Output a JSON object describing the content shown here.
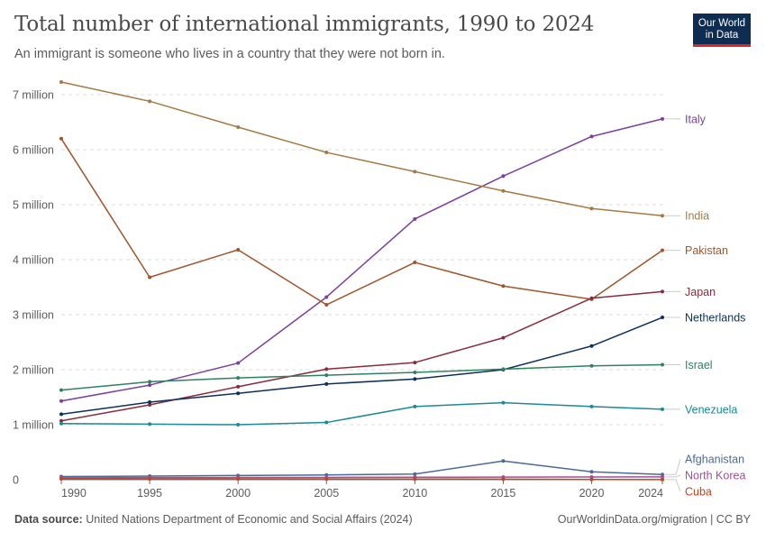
{
  "header": {
    "title": "Total number of international immigrants, 1990 to 2024",
    "subtitle": "An immigrant is someone who lives in a country that they were not born in."
  },
  "logo": {
    "line1": "Our World",
    "line2": "in Data"
  },
  "footer": {
    "source_label": "Data source:",
    "source_text": "United Nations Department of Economic and Social Affairs (2024)",
    "credit": "OurWorldinData.org/migration | CC BY"
  },
  "chart_data": {
    "type": "line",
    "title": "Total number of international immigrants, 1990 to 2024",
    "x": [
      1990,
      1995,
      2000,
      2005,
      2010,
      2015,
      2020,
      2024
    ],
    "x_tick_labels": [
      "1990",
      "1995",
      "2000",
      "2005",
      "2010",
      "2015",
      "2020",
      "2024"
    ],
    "ylim": [
      0,
      7000000
    ],
    "y_ticks": [
      0,
      1000000,
      2000000,
      3000000,
      4000000,
      5000000,
      6000000,
      7000000
    ],
    "y_tick_labels": [
      "0",
      "1 million",
      "2 million",
      "3 million",
      "4 million",
      "5 million",
      "6 million",
      "7 million"
    ],
    "grid": "horizontal dashed",
    "legend": "right, labels at line ends",
    "series": [
      {
        "name": "Italy",
        "color": "#7b3fa0",
        "values": [
          1430000,
          1720000,
          2120000,
          3320000,
          4740000,
          5520000,
          6240000,
          6560000
        ]
      },
      {
        "name": "India",
        "color": "#a57a42",
        "values": [
          7230000,
          6880000,
          6410000,
          5950000,
          5600000,
          5250000,
          4930000,
          4800000
        ]
      },
      {
        "name": "Pakistan",
        "color": "#a2542a",
        "values": [
          6200000,
          3680000,
          4180000,
          3180000,
          3950000,
          3520000,
          3280000,
          4170000
        ]
      },
      {
        "name": "Japan",
        "color": "#8c2a3c",
        "values": [
          1070000,
          1360000,
          1690000,
          2010000,
          2130000,
          2580000,
          3300000,
          3420000
        ]
      },
      {
        "name": "Netherlands",
        "color": "#0c2f5c",
        "values": [
          1190000,
          1410000,
          1570000,
          1740000,
          1830000,
          2000000,
          2430000,
          2950000
        ]
      },
      {
        "name": "Israel",
        "color": "#2e8260",
        "values": [
          1630000,
          1780000,
          1850000,
          1900000,
          1950000,
          2010000,
          2070000,
          2090000
        ]
      },
      {
        "name": "Venezuela",
        "color": "#1a8a94",
        "values": [
          1020000,
          1010000,
          1000000,
          1040000,
          1330000,
          1400000,
          1330000,
          1280000
        ]
      },
      {
        "name": "Afghanistan",
        "color": "#4a6a9a",
        "values": [
          57000,
          65000,
          76000,
          87000,
          102000,
          340000,
          144000,
          95000
        ]
      },
      {
        "name": "North Korea",
        "color": "#a94a9a",
        "values": [
          35000,
          38000,
          40000,
          42000,
          45000,
          47000,
          50000,
          52000
        ]
      },
      {
        "name": "Cuba",
        "color": "#c4431c",
        "values": [
          17000,
          15000,
          14000,
          13000,
          12000,
          11000,
          5000,
          3000
        ]
      }
    ]
  }
}
